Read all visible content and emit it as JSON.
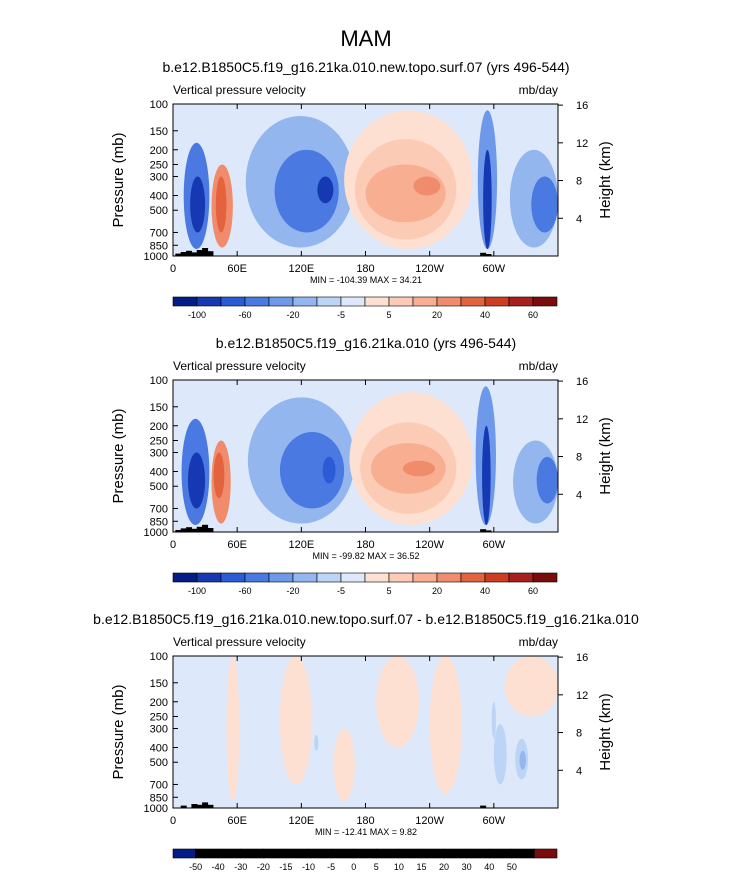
{
  "page": {
    "title": "MAM"
  },
  "colors": {
    "plus": [
      "#fde0d2",
      "#fccbb5",
      "#f8ae90",
      "#f08c6b",
      "#e3633f",
      "#cc3d22",
      "#a81f1b",
      "#7a0c0c"
    ],
    "minus": [
      "#dde9fb",
      "#bcd4f6",
      "#93b6ef",
      "#6e98ea",
      "#4a79e1",
      "#2b5bd6",
      "#1639b3",
      "#041c85"
    ]
  },
  "chart_data": [
    {
      "type": "heatmap",
      "title": "b.e12.B1850C5.f19_g16.21ka.010.new.topo.surf.07 (yrs 496-544)",
      "left_label": "Vertical pressure velocity",
      "right_label": "mb/day",
      "ylabel": "Pressure (mb)",
      "ylabel_right": "Height (km)",
      "x_ticks": [
        "0",
        "60E",
        "120E",
        "180",
        "120W",
        "60W"
      ],
      "y_ticks": [
        "100",
        "150",
        "200",
        "250",
        "300",
        "400",
        "500",
        "700",
        "850",
        "1000"
      ],
      "y2_ticks": [
        "16",
        "12",
        "8",
        "4"
      ],
      "stats": "MIN = -104.39  MAX =  34.21",
      "colorbar_labels": [
        "-100",
        "-60",
        "-20",
        "-5",
        "5",
        "20",
        "40",
        "60"
      ],
      "colorbar_levels": [
        -120,
        -100,
        -80,
        -60,
        -40,
        -20,
        -10,
        -5,
        0,
        5,
        10,
        20,
        30,
        40,
        50,
        60
      ],
      "regions": [
        {
          "lon": [
            0,
            360
          ],
          "p": [
            100,
            1000
          ],
          "level": -1
        },
        {
          "lon": [
            10,
            34
          ],
          "p": [
            180,
            900
          ],
          "level": -5
        },
        {
          "lon": [
            16,
            30
          ],
          "p": [
            300,
            700
          ],
          "level": -7
        },
        {
          "lon": [
            36,
            56
          ],
          "p": [
            250,
            880
          ],
          "level": 4
        },
        {
          "lon": [
            40,
            50
          ],
          "p": [
            300,
            700
          ],
          "level": 5
        },
        {
          "lon": [
            68,
            170
          ],
          "p": [
            120,
            880
          ],
          "level": -3
        },
        {
          "lon": [
            95,
            155
          ],
          "p": [
            200,
            700
          ],
          "level": -5
        },
        {
          "lon": [
            135,
            150
          ],
          "p": [
            300,
            450
          ],
          "level": -7
        },
        {
          "lon": [
            160,
            280
          ],
          "p": [
            110,
            900
          ],
          "level": 1
        },
        {
          "lon": [
            170,
            265
          ],
          "p": [
            170,
            780
          ],
          "level": 2
        },
        {
          "lon": [
            180,
            255
          ],
          "p": [
            250,
            600
          ],
          "level": 3
        },
        {
          "lon": [
            225,
            250
          ],
          "p": [
            300,
            400
          ],
          "level": 4
        },
        {
          "lon": [
            285,
            303
          ],
          "p": [
            110,
            900
          ],
          "level": -4
        },
        {
          "lon": [
            290,
            298
          ],
          "p": [
            200,
            900
          ],
          "level": -7
        },
        {
          "lon": [
            315,
            360
          ],
          "p": [
            200,
            880
          ],
          "level": -3
        },
        {
          "lon": [
            335,
            360
          ],
          "p": [
            300,
            700
          ],
          "level": -5
        }
      ],
      "topography": [
        [
          5,
          0.06
        ],
        [
          10,
          0.1
        ],
        [
          15,
          0.13
        ],
        [
          20,
          0.09
        ],
        [
          25,
          0.15
        ],
        [
          30,
          0.2
        ],
        [
          35,
          0.12
        ],
        [
          290,
          0.08
        ],
        [
          295,
          0.05
        ]
      ]
    },
    {
      "type": "heatmap",
      "title": "b.e12.B1850C5.f19_g16.21ka.010 (yrs 496-544)",
      "left_label": "Vertical pressure velocity",
      "right_label": "mb/day",
      "ylabel": "Pressure (mb)",
      "ylabel_right": "Height (km)",
      "x_ticks": [
        "0",
        "60E",
        "120E",
        "180",
        "120W",
        "60W"
      ],
      "y_ticks": [
        "100",
        "150",
        "200",
        "250",
        "300",
        "400",
        "500",
        "700",
        "850",
        "1000"
      ],
      "y2_ticks": [
        "16",
        "12",
        "8",
        "4"
      ],
      "stats": "MIN = -99.82  MAX =  36.52",
      "colorbar_labels": [
        "-100",
        "-60",
        "-20",
        "-5",
        "5",
        "20",
        "40",
        "60"
      ],
      "colorbar_levels": [
        -120,
        -100,
        -80,
        -60,
        -40,
        -20,
        -10,
        -5,
        0,
        5,
        10,
        20,
        30,
        40,
        50,
        60
      ],
      "regions": [
        {
          "lon": [
            0,
            360
          ],
          "p": [
            100,
            1000
          ],
          "level": -1
        },
        {
          "lon": [
            8,
            34
          ],
          "p": [
            180,
            900
          ],
          "level": -5
        },
        {
          "lon": [
            14,
            30
          ],
          "p": [
            300,
            700
          ],
          "level": -7
        },
        {
          "lon": [
            36,
            54
          ],
          "p": [
            250,
            880
          ],
          "level": 4
        },
        {
          "lon": [
            38,
            48
          ],
          "p": [
            300,
            600
          ],
          "level": 5
        },
        {
          "lon": [
            70,
            170
          ],
          "p": [
            130,
            880
          ],
          "level": -3
        },
        {
          "lon": [
            100,
            160
          ],
          "p": [
            220,
            700
          ],
          "level": -5
        },
        {
          "lon": [
            140,
            152
          ],
          "p": [
            320,
            480
          ],
          "level": -6
        },
        {
          "lon": [
            165,
            280
          ],
          "p": [
            120,
            900
          ],
          "level": 1
        },
        {
          "lon": [
            175,
            265
          ],
          "p": [
            190,
            760
          ],
          "level": 2
        },
        {
          "lon": [
            185,
            255
          ],
          "p": [
            260,
            560
          ],
          "level": 3
        },
        {
          "lon": [
            215,
            245
          ],
          "p": [
            340,
            430
          ],
          "level": 4
        },
        {
          "lon": [
            283,
            302
          ],
          "p": [
            110,
            900
          ],
          "level": -4
        },
        {
          "lon": [
            289,
            297
          ],
          "p": [
            200,
            900
          ],
          "level": -7
        },
        {
          "lon": [
            318,
            360
          ],
          "p": [
            250,
            880
          ],
          "level": -3
        },
        {
          "lon": [
            340,
            360
          ],
          "p": [
            320,
            650
          ],
          "level": -5
        }
      ],
      "topography": [
        [
          5,
          0.05
        ],
        [
          10,
          0.09
        ],
        [
          15,
          0.12
        ],
        [
          20,
          0.08
        ],
        [
          25,
          0.13
        ],
        [
          30,
          0.18
        ],
        [
          35,
          0.1
        ],
        [
          290,
          0.07
        ],
        [
          295,
          0.04
        ]
      ]
    },
    {
      "type": "heatmap",
      "title": "b.e12.B1850C5.f19_g16.21ka.010.new.topo.surf.07 - b.e12.B1850C5.f19_g16.21ka.010",
      "left_label": "Vertical pressure velocity",
      "right_label": "mb/day",
      "ylabel": "Pressure (mb)",
      "ylabel_right": "Height (km)",
      "x_ticks": [
        "0",
        "60E",
        "120E",
        "180",
        "120W",
        "60W"
      ],
      "y_ticks": [
        "100",
        "150",
        "200",
        "250",
        "300",
        "400",
        "500",
        "700",
        "850",
        "1000"
      ],
      "y2_ticks": [
        "16",
        "12",
        "8",
        "4"
      ],
      "stats": "MIN = -12.41  MAX =  9.82",
      "colorbar_labels": [
        "-50",
        "-40",
        "-30",
        "-20",
        "-15",
        "-10",
        "-5",
        "0",
        "5",
        "10",
        "15",
        "20",
        "30",
        "40",
        "50"
      ],
      "colorbar_levels": [
        -60,
        -50,
        -40,
        -30,
        -20,
        -15,
        -10,
        -5,
        0,
        5,
        10,
        15,
        20,
        30,
        40,
        50,
        60
      ],
      "regions": [
        {
          "lon": [
            0,
            360
          ],
          "p": [
            100,
            1000
          ],
          "level": -1
        },
        {
          "lon": [
            50,
            62
          ],
          "p": [
            100,
            900
          ],
          "level": 1
        },
        {
          "lon": [
            100,
            130
          ],
          "p": [
            100,
            700
          ],
          "level": 1
        },
        {
          "lon": [
            150,
            170
          ],
          "p": [
            300,
            900
          ],
          "level": 1
        },
        {
          "lon": [
            190,
            230
          ],
          "p": [
            100,
            400
          ],
          "level": 1
        },
        {
          "lon": [
            240,
            270
          ],
          "p": [
            100,
            800
          ],
          "level": 1
        },
        {
          "lon": [
            310,
            360
          ],
          "p": [
            100,
            250
          ],
          "level": 1
        },
        {
          "lon": [
            132,
            136
          ],
          "p": [
            330,
            420
          ],
          "level": -2
        },
        {
          "lon": [
            300,
            312
          ],
          "p": [
            280,
            700
          ],
          "level": -2
        },
        {
          "lon": [
            320,
            332
          ],
          "p": [
            350,
            650
          ],
          "level": -2
        },
        {
          "lon": [
            324,
            330
          ],
          "p": [
            420,
            560
          ],
          "level": -3
        },
        {
          "lon": [
            298,
            302
          ],
          "p": [
            200,
            350
          ],
          "level": -2
        }
      ],
      "topography": [
        [
          10,
          0.06
        ],
        [
          20,
          0.1
        ],
        [
          25,
          0.08
        ],
        [
          30,
          0.14
        ],
        [
          35,
          0.08
        ],
        [
          290,
          0.06
        ]
      ]
    }
  ]
}
